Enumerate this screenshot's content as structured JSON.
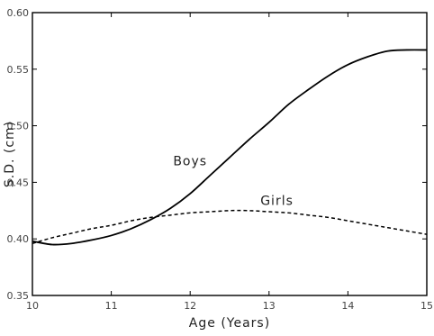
{
  "chart_data": {
    "type": "line",
    "title": "",
    "xlabel": "Age (Years)",
    "ylabel": "S.D. (cm)",
    "xlim": [
      10,
      15
    ],
    "ylim": [
      0.35,
      0.6
    ],
    "x_ticks": [
      10,
      11,
      12,
      13,
      14,
      15
    ],
    "x_tick_labels": [
      "10",
      "11",
      "12",
      "13",
      "14",
      "15"
    ],
    "y_ticks": [
      0.35,
      0.4,
      0.45,
      0.5,
      0.55,
      0.6
    ],
    "y_tick_labels": [
      "0.35",
      "0.40",
      "0.45",
      "0.50",
      "0.55",
      "0.60"
    ],
    "grid": false,
    "legend": "none",
    "series": [
      {
        "name": "Boys",
        "style": "solid",
        "color": "#000000",
        "x": [
          10.0,
          10.25,
          10.5,
          10.75,
          11.0,
          11.25,
          11.5,
          11.75,
          12.0,
          12.25,
          12.5,
          12.75,
          13.0,
          13.25,
          13.5,
          13.75,
          14.0,
          14.25,
          14.5,
          14.75,
          15.0
        ],
        "values": [
          0.398,
          0.395,
          0.396,
          0.399,
          0.403,
          0.409,
          0.417,
          0.427,
          0.44,
          0.456,
          0.472,
          0.488,
          0.503,
          0.519,
          0.532,
          0.544,
          0.554,
          0.561,
          0.566,
          0.567,
          0.567
        ]
      },
      {
        "name": "Girls",
        "style": "dashed",
        "color": "#000000",
        "x": [
          10.0,
          10.25,
          10.5,
          10.75,
          11.0,
          11.25,
          11.5,
          11.75,
          12.0,
          12.25,
          12.5,
          12.75,
          13.0,
          13.25,
          13.5,
          13.75,
          14.0,
          14.25,
          14.5,
          14.75,
          15.0
        ],
        "values": [
          0.396,
          0.401,
          0.405,
          0.409,
          0.412,
          0.416,
          0.419,
          0.421,
          0.423,
          0.424,
          0.425,
          0.425,
          0.424,
          0.423,
          0.421,
          0.419,
          0.416,
          0.413,
          0.41,
          0.407,
          0.404
        ]
      }
    ],
    "annotations": [
      {
        "text": "Boys",
        "x": 12.0,
        "y": 0.465
      },
      {
        "text": "Girls",
        "x": 13.1,
        "y": 0.43
      }
    ]
  }
}
